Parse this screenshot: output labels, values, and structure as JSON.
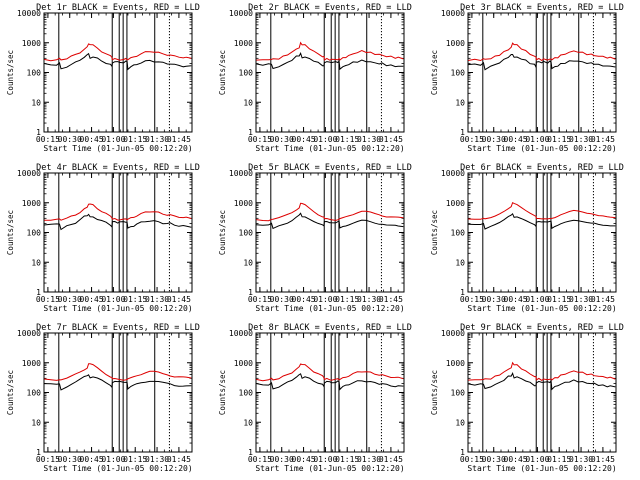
{
  "figure": {
    "colors": {
      "events": "#000000",
      "lld": "#dd0000",
      "axes": "#000000"
    },
    "panels": [
      {
        "title": "Det 1r BLACK = Events, RED = LLD"
      },
      {
        "title": "Det 2r BLACK = Events, RED = LLD"
      },
      {
        "title": "Det 3r BLACK = Events, RED = LLD"
      },
      {
        "title": "Det 4r BLACK = Events, RED = LLD"
      },
      {
        "title": "Det 5r BLACK = Events, RED = LLD"
      },
      {
        "title": "Det 6r BLACK = Events, RED = LLD"
      },
      {
        "title": "Det 7r BLACK = Events, RED = LLD"
      },
      {
        "title": "Det 8r BLACK = Events, RED = LLD"
      },
      {
        "title": "Det 9r BLACK = Events, RED = LLD"
      }
    ]
  },
  "chart_data": {
    "type": "line",
    "layout": "3x3 grid of log-scale line plots",
    "xlabel": "Start Time (01-Jun-05 00:12:20)",
    "ylabel": "Counts/sec",
    "xlim_minutes": [
      12.33,
      114
    ],
    "x_tick_labels": [
      "00:15",
      "00:30",
      "00:45",
      "01:00",
      "01:15",
      "01:30",
      "01:45"
    ],
    "x_tick_minutes": [
      15,
      30,
      45,
      60,
      75,
      90,
      105
    ],
    "ylim": [
      1,
      10000
    ],
    "yscale": "log",
    "y_tick_labels": [
      "1",
      "10",
      "100",
      "1000",
      "10000"
    ],
    "y_tick_values": [
      1,
      10,
      100,
      1000,
      10000
    ],
    "solid_vertical_markers_minutes": [
      22.5,
      59.2,
      64,
      66.7,
      69.3,
      88.4
    ],
    "dashed_vertical_markers_minutes": [
      98.5
    ],
    "series": [
      {
        "name": "Events",
        "color": "black",
        "x_minutes": [
          12.5,
          17,
          21,
          23,
          24,
          28,
          31,
          34,
          37,
          40,
          42,
          43,
          44,
          46,
          49,
          52,
          55,
          58,
          59,
          59.3,
          61,
          63,
          64.2,
          67,
          68.5,
          69.4,
          70,
          72,
          74,
          76,
          79,
          82,
          85,
          88,
          91,
          94,
          97,
          99,
          102,
          105,
          108,
          110,
          113.5
        ],
        "values": [
          190,
          185,
          185,
          200,
          130,
          160,
          185,
          215,
          265,
          340,
          380,
          420,
          320,
          330,
          290,
          250,
          210,
          180,
          160,
          220,
          230,
          220,
          225,
          220,
          230,
          230,
          135,
          155,
          170,
          190,
          215,
          235,
          250,
          240,
          225,
          210,
          200,
          200,
          180,
          170,
          165,
          160,
          160
        ]
      },
      {
        "name": "LLD",
        "color": "red",
        "x_minutes": [
          12.5,
          17,
          21,
          23,
          24,
          28,
          31,
          34,
          37,
          40,
          42,
          43,
          44,
          46,
          49,
          52,
          55,
          58,
          59,
          59.3,
          61,
          63,
          64.2,
          67,
          68.5,
          69.4,
          70,
          72,
          74,
          76,
          79,
          82,
          85,
          88,
          91,
          94,
          97,
          99,
          102,
          105,
          108,
          110,
          113.5
        ],
        "values": [
          270,
          265,
          265,
          285,
          275,
          300,
          340,
          400,
          480,
          600,
          700,
          950,
          900,
          820,
          650,
          520,
          420,
          350,
          330,
          280,
          280,
          270,
          275,
          270,
          280,
          280,
          280,
          300,
          330,
          370,
          420,
          480,
          520,
          500,
          460,
          420,
          400,
          380,
          350,
          340,
          320,
          310,
          300
        ]
      }
    ]
  }
}
